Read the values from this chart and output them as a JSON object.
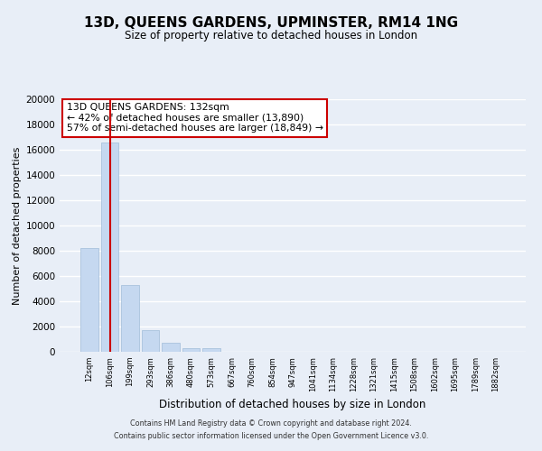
{
  "title": "13D, QUEENS GARDENS, UPMINSTER, RM14 1NG",
  "subtitle": "Size of property relative to detached houses in London",
  "xlabel": "Distribution of detached houses by size in London",
  "ylabel": "Number of detached properties",
  "bar_labels": [
    "12sqm",
    "106sqm",
    "199sqm",
    "293sqm",
    "386sqm",
    "480sqm",
    "573sqm",
    "667sqm",
    "760sqm",
    "854sqm",
    "947sqm",
    "1041sqm",
    "1134sqm",
    "1228sqm",
    "1321sqm",
    "1415sqm",
    "1508sqm",
    "1602sqm",
    "1695sqm",
    "1789sqm",
    "1882sqm"
  ],
  "bar_values": [
    8200,
    16600,
    5300,
    1750,
    750,
    300,
    280,
    0,
    0,
    0,
    0,
    0,
    0,
    0,
    0,
    0,
    0,
    0,
    0,
    0,
    0
  ],
  "bar_color": "#c5d8f0",
  "bar_edge_color": "#a0bcd8",
  "property_line_x": 1,
  "property_line_color": "#cc0000",
  "ylim": [
    0,
    20000
  ],
  "yticks": [
    0,
    2000,
    4000,
    6000,
    8000,
    10000,
    12000,
    14000,
    16000,
    18000,
    20000
  ],
  "annotation_title": "13D QUEENS GARDENS: 132sqm",
  "annotation_line1": "← 42% of detached houses are smaller (13,890)",
  "annotation_line2": "57% of semi-detached houses are larger (18,849) →",
  "annotation_box_color": "#ffffff",
  "annotation_box_edge": "#cc0000",
  "footer_line1": "Contains HM Land Registry data © Crown copyright and database right 2024.",
  "footer_line2": "Contains public sector information licensed under the Open Government Licence v3.0.",
  "background_color": "#e8eef7",
  "plot_background": "#e8eef7",
  "grid_color": "#ffffff"
}
